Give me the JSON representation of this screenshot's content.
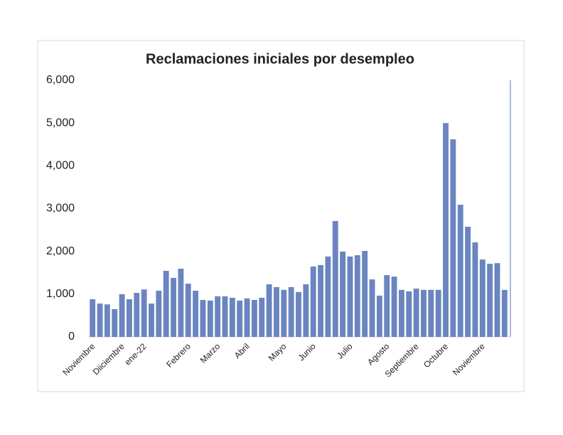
{
  "chart_data": {
    "type": "bar",
    "title": "Reclamaciones iniciales por desempleo",
    "categories": [
      "Noviembre",
      null,
      null,
      null,
      "Diiciembre",
      null,
      null,
      "ene-22",
      null,
      null,
      null,
      null,
      null,
      "Febrero",
      null,
      null,
      null,
      "Marzo",
      null,
      null,
      null,
      "Abril",
      null,
      null,
      null,
      null,
      "Mayo",
      null,
      null,
      null,
      "Junio",
      null,
      null,
      null,
      null,
      "Julio",
      null,
      null,
      null,
      null,
      "Agosto",
      null,
      null,
      null,
      "Septiembre",
      null,
      null,
      null,
      "Octubre",
      null,
      null,
      null,
      null,
      "Noviembre",
      null,
      null,
      null
    ],
    "values": [
      880,
      780,
      760,
      650,
      1000,
      880,
      1030,
      1110,
      780,
      1080,
      1545,
      1380,
      1595,
      1245,
      1080,
      865,
      850,
      950,
      950,
      915,
      850,
      900,
      865,
      915,
      1230,
      1165,
      1100,
      1165,
      1050,
      1230,
      1645,
      1680,
      1880,
      2710,
      1995,
      1880,
      1910,
      2010,
      1345,
      965,
      1445,
      1410,
      1100,
      1065,
      1130,
      1100,
      1100,
      1100,
      5000,
      4620,
      3090,
      2575,
      2210,
      1810,
      1710,
      1725,
      1100
    ],
    "color": "#6a85c0",
    "ylim": [
      0,
      6000
    ],
    "yticks": [
      0,
      {
        "value": 1000,
        "label": "1,000"
      },
      {
        "value": 2000,
        "label": "2,000"
      },
      {
        "value": 3000,
        "label": "3,000"
      },
      {
        "value": 4000,
        "label": "4,000"
      },
      {
        "value": 5000,
        "label": "5,000"
      },
      {
        "value": 6000,
        "label": "6,000"
      }
    ],
    "grid": false
  }
}
